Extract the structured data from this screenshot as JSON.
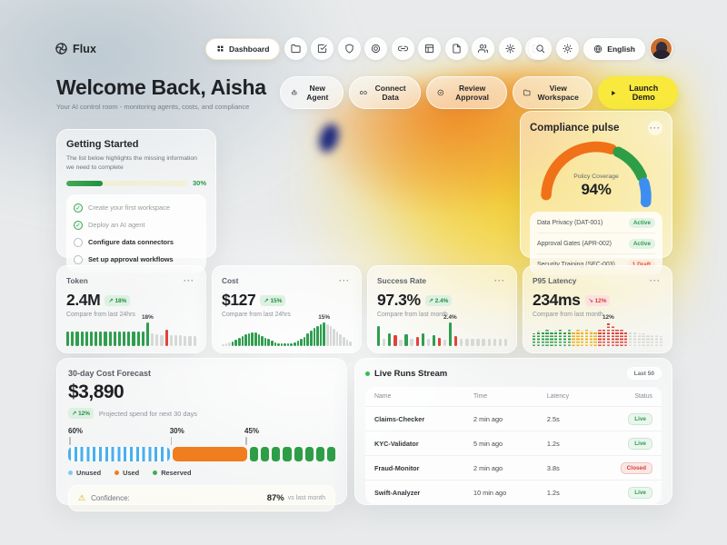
{
  "nav": {
    "brand": "Flux",
    "dashboard_tab": "Dashboard",
    "icon_buttons": [
      "folder",
      "check-square",
      "shield",
      "target",
      "link",
      "columns",
      "file",
      "users",
      "gear",
      "logout"
    ],
    "language": "English"
  },
  "header": {
    "title": "Welcome Back, Aisha",
    "subtitle": "Your AI control room - monitoring agents, costs, and compliance",
    "actions": [
      {
        "label": "New Agent",
        "icon": "bot"
      },
      {
        "label": "Connect Data",
        "icon": "link"
      },
      {
        "label": "Review Approval",
        "icon": "badge-check"
      },
      {
        "label": "View Workspace",
        "icon": "folder"
      }
    ],
    "primary_action": {
      "label": "Launch Demo",
      "icon": "play"
    }
  },
  "getting_started": {
    "title": "Getting Started",
    "description": "The list below highlights the missing information we need to complete",
    "progress_percent": 30,
    "progress_label": "30%",
    "tasks": [
      {
        "label": "Create your first workspace",
        "done": true
      },
      {
        "label": "Deploy an AI agent",
        "done": true
      },
      {
        "label": "Configure data connectors",
        "done": false
      },
      {
        "label": "Set up approval workflows",
        "done": false
      }
    ]
  },
  "compliance": {
    "title": "Compliance pulse",
    "gauge": {
      "label": "Policy Coverage",
      "value": "94%"
    },
    "policies": [
      {
        "name": "Data Privacy (DAT-001)",
        "status": "Active"
      },
      {
        "name": "Approval Gates (APR-002)",
        "status": "Active"
      },
      {
        "name": "Security Training (SEC-003)",
        "status": "1 Draft"
      }
    ]
  },
  "metrics": [
    {
      "title": "Token",
      "value": "2.4M",
      "delta": "18%",
      "trend": "up",
      "compare": "Compare from last 24hrs",
      "peak_label": "18%",
      "peak_index": 17,
      "dotted": false,
      "bars": [
        [
          62,
          "g"
        ],
        [
          60,
          "g"
        ],
        [
          63,
          "g"
        ],
        [
          61,
          "g"
        ],
        [
          62,
          "g"
        ],
        [
          60,
          "g"
        ],
        [
          62,
          "g"
        ],
        [
          61,
          "g"
        ],
        [
          63,
          "g"
        ],
        [
          60,
          "g"
        ],
        [
          62,
          "g"
        ],
        [
          61,
          "g"
        ],
        [
          62,
          "g"
        ],
        [
          60,
          "g"
        ],
        [
          62,
          "g"
        ],
        [
          61,
          "g"
        ],
        [
          63,
          "g"
        ],
        [
          100,
          "g"
        ],
        [
          52,
          "n"
        ],
        [
          50,
          "n"
        ],
        [
          48,
          "n"
        ],
        [
          70,
          "r"
        ],
        [
          48,
          "n"
        ],
        [
          46,
          "n"
        ],
        [
          45,
          "n"
        ],
        [
          44,
          "n"
        ],
        [
          43,
          "n"
        ],
        [
          42,
          "n"
        ]
      ]
    },
    {
      "title": "Cost",
      "value": "$127",
      "delta": "15%",
      "trend": "up",
      "compare": "Compare from last 24hrs",
      "peak_label": "15%",
      "peak_index": 31,
      "dotted": false,
      "bars": [
        [
          8,
          "n"
        ],
        [
          10,
          "n"
        ],
        [
          14,
          "n"
        ],
        [
          20,
          "g"
        ],
        [
          28,
          "g"
        ],
        [
          36,
          "g"
        ],
        [
          44,
          "g"
        ],
        [
          50,
          "g"
        ],
        [
          55,
          "g"
        ],
        [
          58,
          "g"
        ],
        [
          56,
          "g"
        ],
        [
          50,
          "g"
        ],
        [
          43,
          "g"
        ],
        [
          36,
          "g"
        ],
        [
          29,
          "g"
        ],
        [
          23,
          "g"
        ],
        [
          17,
          "g"
        ],
        [
          13,
          "g"
        ],
        [
          11,
          "g"
        ],
        [
          10,
          "g"
        ],
        [
          10,
          "g"
        ],
        [
          12,
          "g"
        ],
        [
          16,
          "g"
        ],
        [
          22,
          "g"
        ],
        [
          30,
          "g"
        ],
        [
          40,
          "g"
        ],
        [
          52,
          "g"
        ],
        [
          64,
          "g"
        ],
        [
          76,
          "g"
        ],
        [
          86,
          "g"
        ],
        [
          94,
          "g"
        ],
        [
          100,
          "g"
        ],
        [
          94,
          "n"
        ],
        [
          85,
          "n"
        ],
        [
          74,
          "n"
        ],
        [
          62,
          "n"
        ],
        [
          50,
          "n"
        ],
        [
          38,
          "n"
        ],
        [
          27,
          "n"
        ],
        [
          18,
          "n"
        ]
      ]
    },
    {
      "title": "Success Rate",
      "value": "97.3%",
      "delta": "2.4%",
      "trend": "up",
      "compare": "Compare from last month",
      "peak_label": "2.4%",
      "peak_index": 13,
      "dotted": false,
      "bars": [
        [
          85,
          "g"
        ],
        [
          30,
          "n"
        ],
        [
          55,
          "g"
        ],
        [
          45,
          "r"
        ],
        [
          28,
          "n"
        ],
        [
          50,
          "g"
        ],
        [
          30,
          "n"
        ],
        [
          38,
          "r"
        ],
        [
          55,
          "g"
        ],
        [
          30,
          "n"
        ],
        [
          45,
          "g"
        ],
        [
          35,
          "r"
        ],
        [
          28,
          "n"
        ],
        [
          100,
          "g"
        ],
        [
          42,
          "r"
        ],
        [
          30,
          "n"
        ],
        [
          30,
          "n"
        ],
        [
          30,
          "n"
        ],
        [
          30,
          "n"
        ],
        [
          30,
          "n"
        ],
        [
          30,
          "n"
        ],
        [
          30,
          "n"
        ],
        [
          30,
          "n"
        ],
        [
          30,
          "n"
        ]
      ]
    },
    {
      "title": "P95 Latency",
      "value": "234ms",
      "delta": "12%",
      "trend": "down",
      "compare": "Compare from last month",
      "peak_label": "12%",
      "peak_index": 17,
      "dotted": true,
      "bars": [
        [
          55,
          "g"
        ],
        [
          65,
          "g"
        ],
        [
          60,
          "g"
        ],
        [
          70,
          "g"
        ],
        [
          58,
          "g"
        ],
        [
          66,
          "g"
        ],
        [
          72,
          "g"
        ],
        [
          60,
          "g"
        ],
        [
          68,
          "g"
        ],
        [
          62,
          "y"
        ],
        [
          70,
          "y"
        ],
        [
          64,
          "y"
        ],
        [
          72,
          "y"
        ],
        [
          66,
          "y"
        ],
        [
          60,
          "y"
        ],
        [
          70,
          "r"
        ],
        [
          78,
          "r"
        ],
        [
          100,
          "r"
        ],
        [
          84,
          "r"
        ],
        [
          74,
          "r"
        ],
        [
          68,
          "r"
        ],
        [
          62,
          "r"
        ],
        [
          58,
          "n"
        ],
        [
          56,
          "n"
        ],
        [
          54,
          "n"
        ],
        [
          52,
          "n"
        ],
        [
          50,
          "n"
        ],
        [
          48,
          "n"
        ],
        [
          46,
          "n"
        ],
        [
          44,
          "n"
        ]
      ]
    }
  ],
  "forecast": {
    "title": "30-day Cost Forecast",
    "value": "$3,890",
    "delta": "12%",
    "trend": "up",
    "note": "Projected spend for next 30 days",
    "segments": [
      {
        "label": "60%",
        "name": "Unused",
        "width_pct": 38,
        "style": "striped"
      },
      {
        "label": "30%",
        "name": "Used",
        "width_pct": 28,
        "style": "solid"
      },
      {
        "label": "45%",
        "name": "Reserved",
        "width_pct": 34,
        "style": "blocks",
        "blocks": 8
      }
    ],
    "legend": [
      {
        "label": "Unused",
        "color": "#7ecbf2"
      },
      {
        "label": "Used",
        "color": "#f07d1e"
      },
      {
        "label": "Reserved",
        "color": "#3fae53"
      }
    ],
    "confidence": {
      "label": "Confidence:",
      "value": "87%",
      "note": "vs last month"
    }
  },
  "live_runs": {
    "title": "Live Runs Stream",
    "badge": "Last 50",
    "columns": [
      "Name",
      "Time",
      "Latency",
      "Status"
    ],
    "rows": [
      {
        "name": "Claims-Checker",
        "time": "2 min ago",
        "latency": "2.5s",
        "status": "Live"
      },
      {
        "name": "KYC-Validator",
        "time": "5 min ago",
        "latency": "1.2s",
        "status": "Live"
      },
      {
        "name": "Fraud-Monitor",
        "time": "2 min ago",
        "latency": "3.8s",
        "status": "Closed"
      },
      {
        "name": "Swift-Analyzer",
        "time": "10 min ago",
        "latency": "1.2s",
        "status": "Live"
      }
    ]
  },
  "colors": {
    "green": "#2f9e4f",
    "red": "#e0433c",
    "orange": "#f07d1e",
    "gauge_orange": "#f07118",
    "gauge_green": "#2e9e46",
    "gauge_blue": "#3c8ff0",
    "yellow_accent": "#f9e93c",
    "neutral_bar": "#d6d9d6",
    "amber_bar": "#efb11c",
    "stripe_blue": "#49b0ee"
  }
}
